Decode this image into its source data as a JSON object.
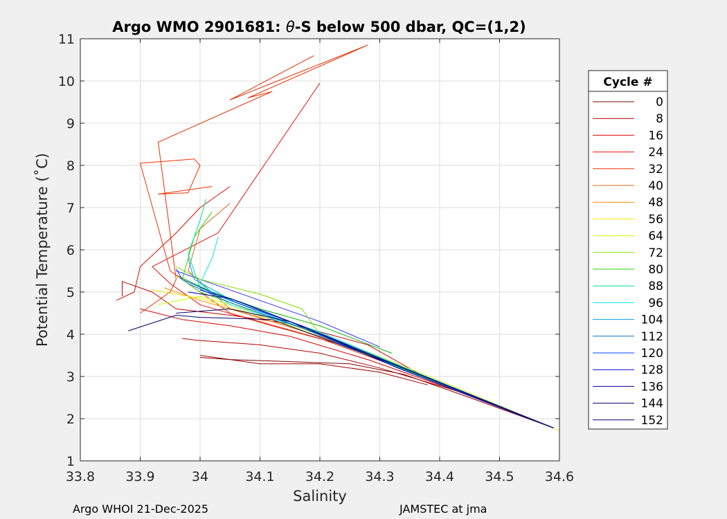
{
  "chart_data": {
    "type": "line",
    "title": "Argo WMO 2901681: θ-S below 500 dbar,  QC=(1,2)",
    "title_parts": {
      "prefix": "Argo WMO 2901681: ",
      "theta": "θ",
      "suffix": "-S below 500 dbar,  QC=(1,2)"
    },
    "xlabel": "Salinity",
    "ylabel": "Potential Temperature (˚C)",
    "xlim": [
      33.8,
      34.6
    ],
    "ylim": [
      1,
      11
    ],
    "grid": true,
    "xticks": [
      "33.8",
      "33.9",
      "34",
      "34.1",
      "34.2",
      "34.3",
      "34.4",
      "34.5",
      "34.6"
    ],
    "xtick_values": [
      33.8,
      33.9,
      34.0,
      34.1,
      34.2,
      34.3,
      34.4,
      34.5,
      34.6
    ],
    "yticks": [
      "1",
      "2",
      "3",
      "4",
      "5",
      "6",
      "7",
      "8",
      "9",
      "10",
      "11"
    ],
    "ytick_values": [
      1,
      2,
      3,
      4,
      5,
      6,
      7,
      8,
      9,
      10,
      11
    ],
    "legend_title": "Cycle #",
    "legend_position": "outside-right",
    "series": [
      {
        "name": "0",
        "color": "#800000",
        "points": [
          [
            34.59,
            1.78
          ],
          [
            34.45,
            2.5
          ],
          [
            34.34,
            3.05
          ],
          [
            34.25,
            3.3
          ],
          [
            34.15,
            3.35
          ],
          [
            34.05,
            3.4
          ],
          [
            34.0,
            3.45
          ]
        ]
      },
      {
        "name": "8",
        "color": "#b00000",
        "points": [
          [
            34.59,
            1.78
          ],
          [
            34.43,
            2.65
          ],
          [
            34.3,
            3.2
          ],
          [
            34.2,
            3.55
          ],
          [
            34.1,
            3.75
          ],
          [
            34.0,
            3.85
          ],
          [
            33.97,
            3.9
          ]
        ]
      },
      {
        "name": "16",
        "color": "#dd0000",
        "points": [
          [
            34.59,
            1.78
          ],
          [
            34.42,
            2.7
          ],
          [
            34.28,
            3.4
          ],
          [
            34.15,
            3.95
          ],
          [
            34.05,
            4.2
          ],
          [
            33.97,
            4.35
          ],
          [
            33.9,
            4.6
          ]
        ]
      },
      {
        "name": "24",
        "color": "#e81010",
        "points": [
          [
            34.59,
            1.78
          ],
          [
            34.42,
            2.75
          ],
          [
            34.25,
            3.7
          ],
          [
            34.12,
            4.2
          ],
          [
            34.0,
            4.7
          ],
          [
            33.95,
            5.2
          ],
          [
            33.92,
            5.6
          ],
          [
            34.03,
            6.4
          ],
          [
            34.2,
            9.95
          ]
        ]
      },
      {
        "name": "32",
        "color": "#ee3000",
        "points": [
          [
            34.59,
            1.78
          ],
          [
            34.41,
            2.8
          ],
          [
            34.2,
            3.9
          ],
          [
            34.05,
            4.5
          ],
          [
            33.95,
            5.5
          ],
          [
            33.9,
            8.05
          ],
          [
            33.99,
            8.15
          ],
          [
            34.0,
            8.0
          ],
          [
            33.98,
            7.35
          ],
          [
            33.93,
            7.32
          ],
          [
            34.02,
            7.5
          ]
        ]
      },
      {
        "name": "40",
        "color": "#d2691e",
        "points": [
          [
            34.59,
            1.78
          ],
          [
            34.4,
            2.85
          ],
          [
            34.2,
            3.95
          ],
          [
            34.05,
            4.6
          ],
          [
            33.98,
            5.5
          ],
          [
            34.0,
            6.5
          ],
          [
            34.05,
            7.1
          ]
        ]
      },
      {
        "name": "48",
        "color": "#ff8c00",
        "points": [
          [
            34.59,
            1.78
          ],
          [
            34.39,
            2.9
          ],
          [
            34.22,
            3.85
          ],
          [
            34.1,
            4.4
          ],
          [
            34.0,
            4.8
          ],
          [
            33.94,
            5.1
          ]
        ]
      },
      {
        "name": "56",
        "color": "#f5e600",
        "points": [
          [
            34.6,
            1.72
          ],
          [
            34.4,
            2.9
          ],
          [
            34.25,
            3.75
          ],
          [
            34.12,
            4.35
          ],
          [
            34.0,
            4.85
          ],
          [
            33.92,
            5.05
          ]
        ]
      },
      {
        "name": "64",
        "color": "#c8ff00",
        "points": [
          [
            34.59,
            1.78
          ],
          [
            34.38,
            2.95
          ],
          [
            34.22,
            3.9
          ],
          [
            34.1,
            4.5
          ],
          [
            34.0,
            4.9
          ],
          [
            33.93,
            4.7
          ]
        ]
      },
      {
        "name": "72",
        "color": "#80e000",
        "points": [
          [
            34.59,
            1.78
          ],
          [
            34.37,
            3.0
          ],
          [
            34.2,
            4.0
          ],
          [
            34.17,
            4.6
          ],
          [
            34.1,
            4.95
          ],
          [
            34.0,
            5.3
          ],
          [
            33.96,
            5.6
          ]
        ]
      },
      {
        "name": "80",
        "color": "#30d000",
        "points": [
          [
            34.59,
            1.78
          ],
          [
            34.36,
            3.05
          ],
          [
            34.2,
            4.0
          ],
          [
            34.08,
            4.6
          ],
          [
            34.0,
            5.0
          ],
          [
            33.97,
            5.3
          ],
          [
            33.99,
            6.3
          ],
          [
            34.02,
            6.9
          ]
        ]
      },
      {
        "name": "88",
        "color": "#00e090",
        "points": [
          [
            34.59,
            1.78
          ],
          [
            34.36,
            3.1
          ],
          [
            34.2,
            4.05
          ],
          [
            34.08,
            4.65
          ],
          [
            34.0,
            5.1
          ],
          [
            33.98,
            5.9
          ],
          [
            34.0,
            6.7
          ],
          [
            34.01,
            7.2
          ]
        ]
      },
      {
        "name": "96",
        "color": "#00e5e5",
        "points": [
          [
            34.59,
            1.78
          ],
          [
            34.35,
            3.1
          ],
          [
            34.18,
            4.1
          ],
          [
            34.05,
            4.7
          ],
          [
            34.0,
            5.2
          ],
          [
            34.02,
            5.8
          ],
          [
            34.03,
            6.3
          ]
        ]
      },
      {
        "name": "104",
        "color": "#00a0e8",
        "points": [
          [
            34.59,
            1.78
          ],
          [
            34.35,
            3.15
          ],
          [
            34.18,
            4.1
          ],
          [
            34.06,
            4.75
          ],
          [
            33.99,
            5.3
          ],
          [
            33.98,
            5.8
          ]
        ]
      },
      {
        "name": "112",
        "color": "#0070c0",
        "points": [
          [
            34.59,
            1.78
          ],
          [
            34.34,
            3.15
          ],
          [
            34.17,
            4.15
          ],
          [
            34.05,
            4.75
          ],
          [
            33.98,
            5.2
          ]
        ]
      },
      {
        "name": "120",
        "color": "#0040ff",
        "points": [
          [
            34.59,
            1.78
          ],
          [
            34.34,
            3.2
          ],
          [
            34.17,
            4.2
          ],
          [
            34.05,
            4.8
          ],
          [
            33.97,
            5.3
          ],
          [
            33.96,
            5.55
          ]
        ]
      },
      {
        "name": "128",
        "color": "#0000d0",
        "points": [
          [
            34.59,
            1.78
          ],
          [
            34.33,
            3.2
          ],
          [
            34.16,
            4.25
          ],
          [
            34.06,
            4.8
          ],
          [
            34.0,
            5.05
          ]
        ]
      },
      {
        "name": "136",
        "color": "#000090",
        "points": [
          [
            34.59,
            1.78
          ],
          [
            34.33,
            3.25
          ],
          [
            34.15,
            4.3
          ],
          [
            34.05,
            4.85
          ],
          [
            33.98,
            5.0
          ]
        ]
      },
      {
        "name": "144",
        "color": "#000060",
        "points": [
          [
            34.59,
            1.78
          ],
          [
            34.33,
            3.25
          ],
          [
            34.15,
            4.3
          ],
          [
            34.05,
            4.6
          ],
          [
            33.96,
            4.5
          ]
        ]
      },
      {
        "name": "152",
        "color": "#000070",
        "points": [
          [
            34.59,
            1.78
          ],
          [
            34.32,
            3.3
          ],
          [
            34.12,
            4.35
          ],
          [
            34.0,
            4.4
          ],
          [
            33.96,
            4.45
          ],
          [
            33.88,
            4.08
          ]
        ]
      }
    ],
    "extra_traces": [
      {
        "color": "#e03000",
        "points": [
          [
            33.9,
            4.5
          ],
          [
            33.95,
            5.0
          ],
          [
            33.96,
            5.3
          ],
          [
            33.93,
            8.55
          ],
          [
            34.12,
            9.75
          ],
          [
            34.08,
            9.6
          ],
          [
            34.28,
            10.85
          ],
          [
            34.05,
            9.55
          ],
          [
            34.19,
            10.6
          ]
        ]
      },
      {
        "color": "#d01000",
        "points": [
          [
            33.86,
            4.8
          ],
          [
            33.89,
            5.0
          ],
          [
            33.9,
            5.6
          ],
          [
            33.96,
            6.4
          ],
          [
            34.0,
            7.0
          ],
          [
            34.05,
            7.5
          ]
        ]
      },
      {
        "color": "#c00000",
        "points": [
          [
            33.87,
            4.9
          ],
          [
            33.87,
            5.25
          ],
          [
            33.92,
            5.0
          ],
          [
            33.96,
            4.6
          ],
          [
            34.05,
            4.45
          ],
          [
            34.15,
            4.25
          ],
          [
            34.28,
            3.75
          ],
          [
            34.38,
            2.95
          ]
        ]
      },
      {
        "color": "#a00000",
        "points": [
          [
            34.0,
            3.5
          ],
          [
            34.1,
            3.3
          ],
          [
            34.2,
            3.3
          ],
          [
            34.3,
            3.1
          ],
          [
            34.38,
            2.8
          ]
        ]
      },
      {
        "color": "#3030ff",
        "points": [
          [
            33.96,
            5.5
          ],
          [
            34.02,
            5.2
          ],
          [
            34.1,
            4.8
          ],
          [
            34.2,
            4.3
          ],
          [
            34.3,
            3.7
          ]
        ]
      },
      {
        "color": "#00b000",
        "points": [
          [
            33.96,
            5.4
          ],
          [
            34.02,
            5.0
          ],
          [
            34.1,
            4.6
          ],
          [
            34.2,
            4.2
          ],
          [
            34.32,
            3.55
          ]
        ]
      }
    ]
  },
  "footer": {
    "left": "Argo WHOI 21-Dec-2025",
    "right": "JAMSTEC at jma"
  }
}
